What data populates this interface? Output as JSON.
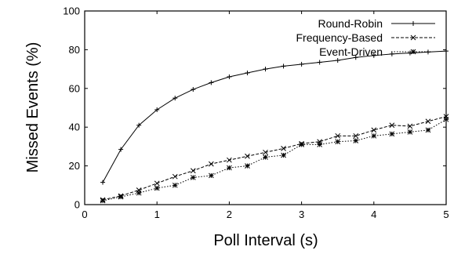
{
  "chart_data": {
    "type": "line",
    "xlabel": "Poll Interval (s)",
    "ylabel": "Missed Events (%)",
    "xlim": [
      0,
      5
    ],
    "ylim": [
      0,
      100
    ],
    "x_ticks": [
      0,
      1,
      2,
      3,
      4,
      5
    ],
    "y_ticks": [
      0,
      20,
      40,
      60,
      80,
      100
    ],
    "grid": false,
    "legend_position": "top-right",
    "x": [
      0.25,
      0.5,
      0.75,
      1.0,
      1.25,
      1.5,
      1.75,
      2.0,
      2.25,
      2.5,
      2.75,
      3.0,
      3.25,
      3.5,
      3.75,
      4.0,
      4.25,
      4.5,
      4.75,
      5.0
    ],
    "series": [
      {
        "name": "Round-Robin",
        "marker": "plus",
        "dash": "solid",
        "values": [
          11.5,
          28.5,
          41.0,
          49.0,
          55.0,
          59.5,
          63.0,
          66.0,
          68.0,
          70.0,
          71.5,
          72.5,
          73.5,
          74.5,
          76.0,
          77.0,
          77.8,
          78.3,
          78.8,
          79.3
        ]
      },
      {
        "name": "Frequency-Based",
        "marker": "x",
        "dash": "dashed",
        "values": [
          2.5,
          4.5,
          7.5,
          11.0,
          14.5,
          17.5,
          21.0,
          23.0,
          25.0,
          27.0,
          29.0,
          31.5,
          32.5,
          35.5,
          35.5,
          38.5,
          41.0,
          40.5,
          43.0,
          45.5
        ]
      },
      {
        "name": "Event-Driven",
        "marker": "asterisk",
        "dash": "dotted",
        "values": [
          2.0,
          4.0,
          6.0,
          8.5,
          10.0,
          14.0,
          15.0,
          19.0,
          20.0,
          24.5,
          25.5,
          31.0,
          31.0,
          32.5,
          33.0,
          35.5,
          36.5,
          37.5,
          38.5,
          44.0
        ]
      }
    ]
  }
}
